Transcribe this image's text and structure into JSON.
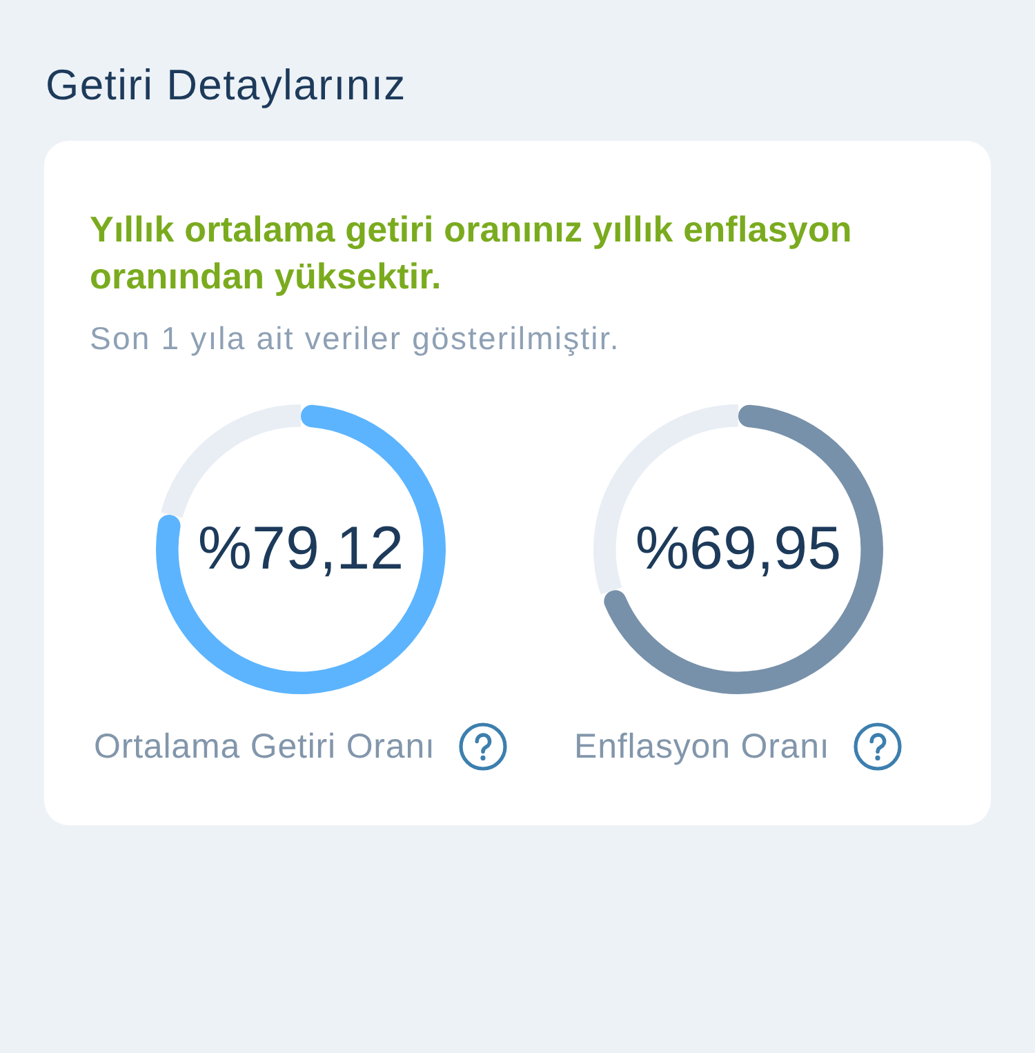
{
  "chart_data": [
    {
      "type": "other",
      "title": "Getiri Detaylarınız",
      "subtitle": "Yıllık ortalama getiri oranınız yıllık enflasyon oranından yüksektir.",
      "annotations": [
        "Son 1 yıla ait veriler gösterilmiştir."
      ]
    },
    {
      "type": "donut",
      "categories": [
        "Ortalama Getiri Oranı",
        null
      ],
      "values": [
        79.12,
        20.88
      ],
      "colors": [
        "#5cb4fe",
        "#e9eef5"
      ],
      "value_labels": [
        "%79,12",
        null
      ]
    },
    {
      "type": "donut",
      "categories": [
        "Enflasyon Oranı",
        null
      ],
      "values": [
        69.95,
        30.05
      ],
      "colors": [
        "#7891aa",
        "#e9eef5"
      ],
      "value_labels": [
        "%69,95",
        null
      ]
    }
  ]
}
